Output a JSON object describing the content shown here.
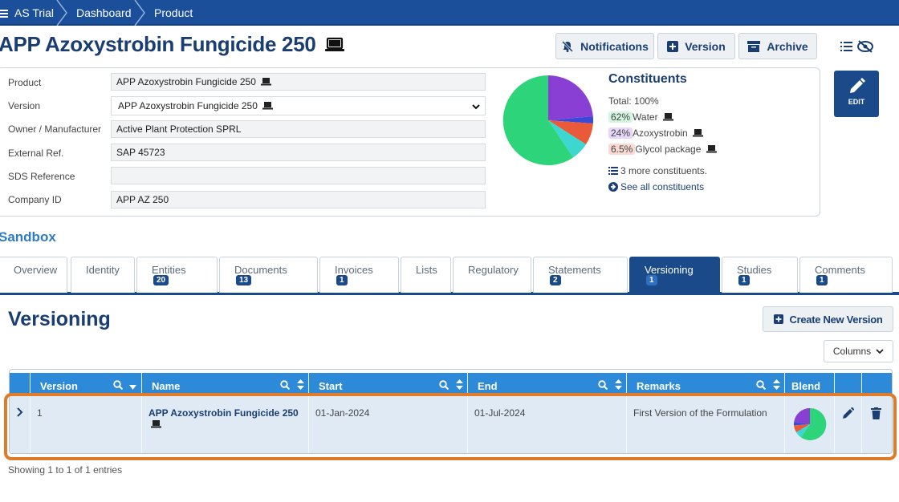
{
  "breadcrumb": {
    "items": [
      "AS Trial",
      "Dashboard",
      "Product"
    ]
  },
  "page": {
    "title": "APP Azoxystrobin Fungicide 250"
  },
  "header_buttons": {
    "notifications": "Notifications",
    "version": "Version",
    "archive": "Archive",
    "edit": "EDIT"
  },
  "fields": {
    "product_label": "Product",
    "product_value": "APP Azoxystrobin Fungicide 250",
    "version_label": "Version",
    "version_value": "APP Azoxystrobin Fungicide 250",
    "owner_label": "Owner / Manufacturer",
    "owner_value": "Active Plant Protection SPRL",
    "extref_label": "External Ref.",
    "extref_value": "SAP 45723",
    "sds_label": "SDS Reference",
    "sds_value": "",
    "company_label": "Company ID",
    "company_value": "APP AZ 250"
  },
  "constituents": {
    "title": "Constituents",
    "total": "Total: 100%",
    "items": [
      {
        "pct": "62%",
        "name": "Water",
        "color": "#2ed47a",
        "bg": "#d4f5e2"
      },
      {
        "pct": "24%",
        "name": "Azoxystrobin",
        "color": "#8a3fd4",
        "bg": "#e6d6f7"
      },
      {
        "pct": "6.5%",
        "name": "Glycol package",
        "color": "#e85a3a",
        "bg": "#f9dad2"
      }
    ],
    "more": "3 more constituents.",
    "see_all": "See all constituents"
  },
  "sandbox": "Sandbox",
  "tabs": [
    {
      "label": "Overview",
      "badge": ""
    },
    {
      "label": "Identity",
      "badge": ""
    },
    {
      "label": "Entities",
      "badge": "20"
    },
    {
      "label": "Documents",
      "badge": "13"
    },
    {
      "label": "Invoices",
      "badge": "1"
    },
    {
      "label": "Lists",
      "badge": ""
    },
    {
      "label": "Regulatory",
      "badge": ""
    },
    {
      "label": "Statements",
      "badge": "2"
    },
    {
      "label": "Versioning",
      "badge": "1"
    },
    {
      "label": "Studies",
      "badge": "1"
    },
    {
      "label": "Comments",
      "badge": "1"
    }
  ],
  "versioning": {
    "title": "Versioning",
    "create_button": "Create New Version",
    "columns_button": "Columns"
  },
  "table": {
    "headers": [
      "Version",
      "Name",
      "Start",
      "End",
      "Remarks",
      "Blend"
    ],
    "rows": [
      {
        "version": "1",
        "name": "APP Azoxystrobin Fungicide 250",
        "start": "01-Jan-2024",
        "end": "01-Jul-2024",
        "remarks": "First Version of the Formulation"
      }
    ],
    "footer": "Showing 1 to 1 of 1 entries"
  },
  "colors": {
    "brand": "#1b4f99",
    "header": "#2d8ad8",
    "highlight": "#e07b2a"
  }
}
